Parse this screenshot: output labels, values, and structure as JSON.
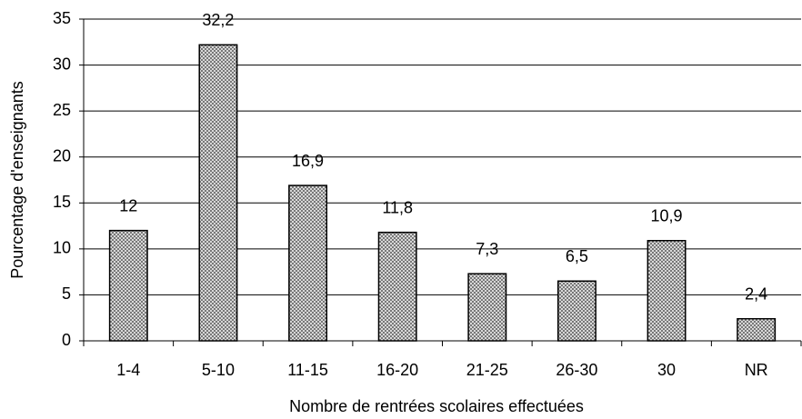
{
  "chart_data": {
    "type": "bar",
    "xlabel": "Nombre de rentrées scolaires effectuées",
    "ylabel": "Pourcentage d'enseignants",
    "categories": [
      "1-4",
      "5-10",
      "11-15",
      "16-20",
      "21-25",
      "26-30",
      "30",
      "NR"
    ],
    "values": [
      12,
      32.2,
      16.9,
      11.8,
      7.3,
      6.5,
      10.9,
      2.4
    ],
    "value_labels": [
      "12",
      "32,2",
      "16,9",
      "11,8",
      "7,3",
      "6,5",
      "10,9",
      "2,4"
    ],
    "color": "#6e6e6e",
    "ylim": [
      0,
      35
    ],
    "yticks": [
      0,
      5,
      10,
      15,
      20,
      25,
      30,
      35
    ],
    "grid": true
  }
}
